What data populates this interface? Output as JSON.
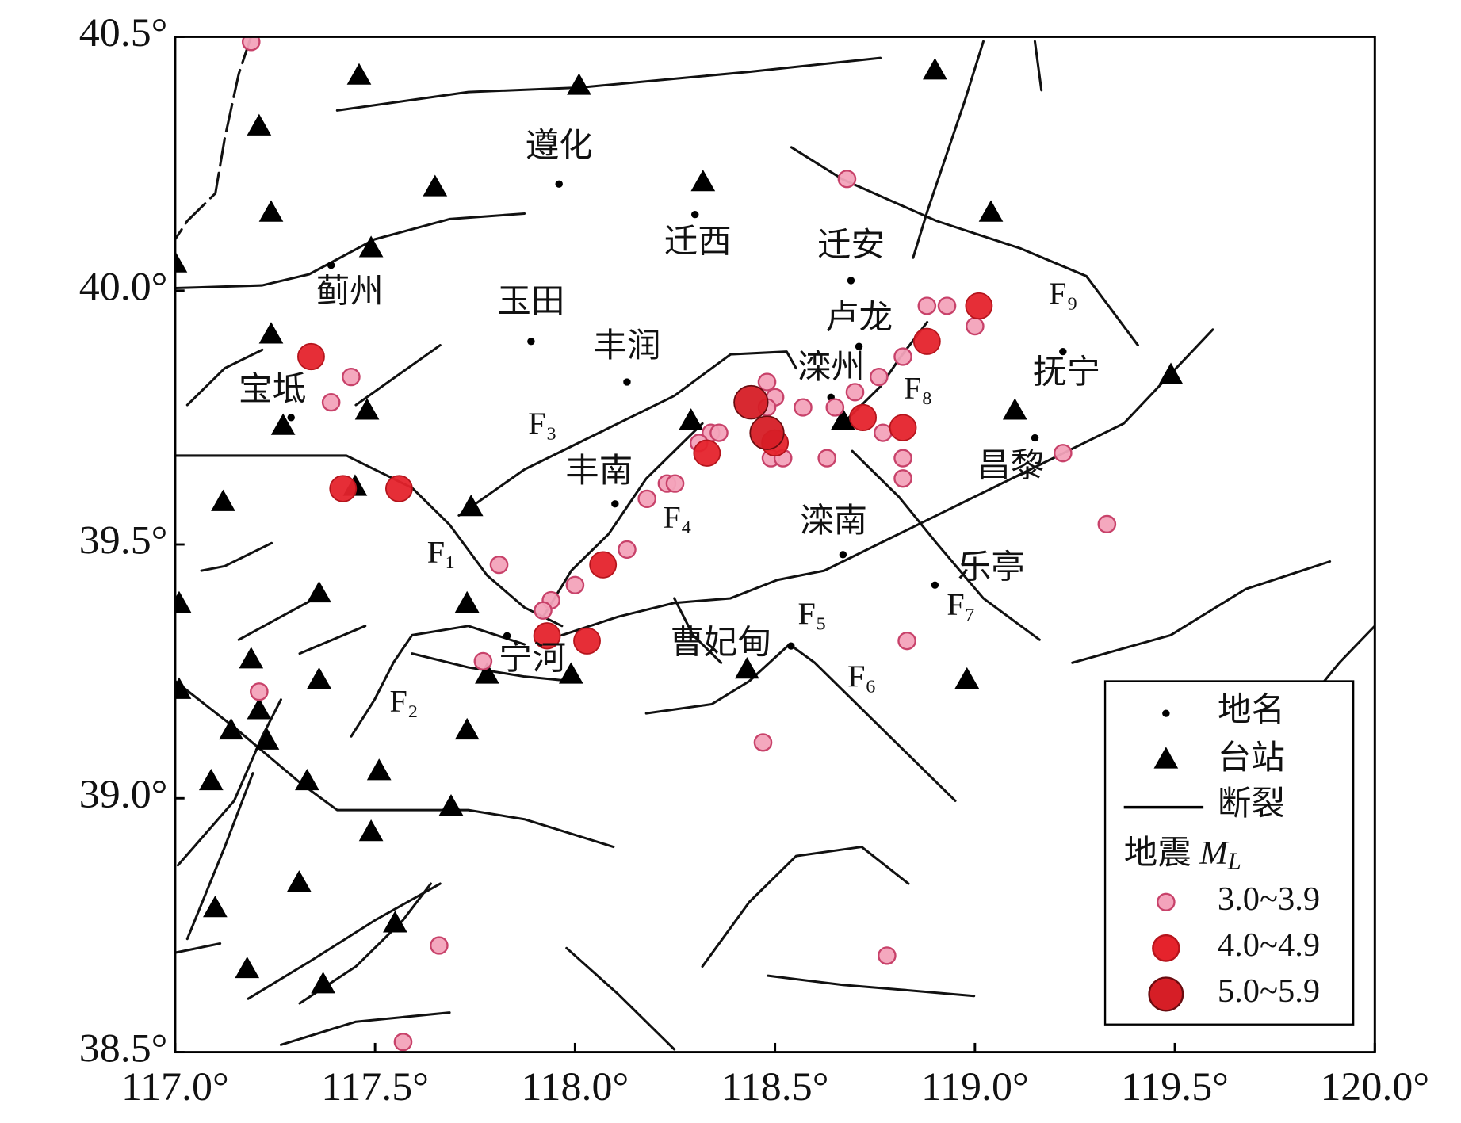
{
  "chart_data": {
    "type": "map",
    "xlim": [
      117.0,
      120.0
    ],
    "ylim": [
      38.5,
      40.5
    ],
    "xticks": [
      {
        "value": 117.0,
        "label": "117.0°"
      },
      {
        "value": 117.5,
        "label": "117.5°"
      },
      {
        "value": 118.0,
        "label": "118.0°"
      },
      {
        "value": 118.5,
        "label": "118.5°"
      },
      {
        "value": 119.0,
        "label": "119.0°"
      },
      {
        "value": 119.5,
        "label": "119.5°"
      },
      {
        "value": 120.0,
        "label": "120.0°"
      }
    ],
    "yticks": [
      {
        "value": 38.5,
        "label": "38.5°"
      },
      {
        "value": 39.0,
        "label": "39.0°"
      },
      {
        "value": 39.5,
        "label": "39.5°"
      },
      {
        "value": 40.0,
        "label": "40.0°"
      },
      {
        "value": 40.5,
        "label": "40.5°"
      }
    ],
    "places": {
      "name": "地名",
      "labels": [
        "遵化",
        "迁西",
        "迁安",
        "蓟州",
        "玉田",
        "丰润",
        "宝坻",
        "抚宁",
        "卢龙",
        "滦州",
        "昌黎",
        "丰南",
        "滦南",
        "乐亭",
        "宁河",
        "曹妃甸"
      ],
      "x": [
        117.96,
        118.3,
        118.69,
        117.39,
        117.89,
        118.13,
        117.29,
        119.22,
        118.71,
        118.64,
        119.15,
        118.1,
        118.67,
        118.9,
        117.83,
        118.54
      ],
      "y": [
        40.21,
        40.15,
        40.02,
        40.05,
        39.9,
        39.82,
        39.75,
        39.88,
        39.89,
        39.79,
        39.71,
        39.58,
        39.48,
        39.42,
        39.32,
        39.3
      ]
    },
    "stations": {
      "name": "台站",
      "color": "#000000",
      "x": [
        117.46,
        117.21,
        118.01,
        118.9,
        118.32,
        117.65,
        117.24,
        117.49,
        117.0,
        119.04,
        117.24,
        117.48,
        117.27,
        118.29,
        118.67,
        119.1,
        119.49,
        117.45,
        117.12,
        117.74,
        117.36,
        117.73,
        117.01,
        117.78,
        117.99,
        118.43,
        118.98,
        117.19,
        117.36,
        117.01,
        117.21,
        117.14,
        117.23,
        117.73,
        117.09,
        117.33,
        117.51,
        117.69,
        117.49,
        117.31,
        117.1,
        117.55,
        117.18,
        117.37
      ],
      "y": [
        40.42,
        40.32,
        40.4,
        40.43,
        40.21,
        40.2,
        40.15,
        40.08,
        40.05,
        40.15,
        39.91,
        39.76,
        39.73,
        39.74,
        39.74,
        39.76,
        39.83,
        39.61,
        39.58,
        39.57,
        39.4,
        39.38,
        39.38,
        39.24,
        39.24,
        39.25,
        39.23,
        39.27,
        39.23,
        39.21,
        39.17,
        39.13,
        39.11,
        39.13,
        39.03,
        39.03,
        39.05,
        38.98,
        38.93,
        38.83,
        38.78,
        38.75,
        38.66,
        38.63
      ]
    },
    "faults": {
      "name": "断裂"
    },
    "fault_labels": [
      "F₁",
      "F₂",
      "F₃",
      "F₄",
      "F₅",
      "F₆",
      "F₇",
      "F₈",
      "F₉"
    ],
    "legend_title": "地震",
    "magnitude_symbol": "M",
    "magnitude_subscript": "L",
    "series": [
      {
        "name": "3.0~3.9",
        "color": "#f3a3bb",
        "x": [
          117.19,
          118.68,
          117.44,
          117.39,
          117.81,
          118.13,
          118.0,
          117.94,
          117.92,
          117.77,
          118.18,
          118.23,
          118.25,
          118.34,
          118.36,
          118.31,
          118.48,
          118.5,
          118.48,
          118.57,
          118.49,
          118.52,
          118.63,
          118.65,
          118.7,
          118.76,
          118.82,
          118.88,
          118.93,
          119.0,
          118.77,
          118.82,
          118.82,
          119.22,
          119.33,
          118.83,
          118.47,
          117.66,
          118.78,
          117.57,
          117.21
        ],
        "y": [
          40.49,
          40.22,
          39.83,
          39.78,
          39.46,
          39.49,
          39.42,
          39.39,
          39.37,
          39.27,
          39.59,
          39.62,
          39.62,
          39.72,
          39.72,
          39.7,
          39.82,
          39.79,
          39.77,
          39.77,
          39.67,
          39.67,
          39.67,
          39.77,
          39.8,
          39.83,
          39.87,
          39.97,
          39.97,
          39.93,
          39.72,
          39.67,
          39.63,
          39.68,
          39.54,
          39.31,
          39.11,
          38.71,
          38.69,
          38.52,
          39.21
        ]
      },
      {
        "name": "4.0~4.9",
        "color": "#e5232c",
        "x": [
          117.34,
          117.42,
          117.56,
          117.93,
          118.03,
          118.07,
          118.33,
          118.72,
          118.82,
          118.88,
          119.01,
          118.5
        ],
        "y": [
          39.87,
          39.61,
          39.61,
          39.32,
          39.31,
          39.46,
          39.68,
          39.75,
          39.73,
          39.9,
          39.97,
          39.7
        ]
      },
      {
        "name": "5.0~5.9",
        "color": "#d61e26",
        "x": [
          118.44,
          118.48
        ],
        "y": [
          39.78,
          39.72
        ]
      }
    ]
  }
}
